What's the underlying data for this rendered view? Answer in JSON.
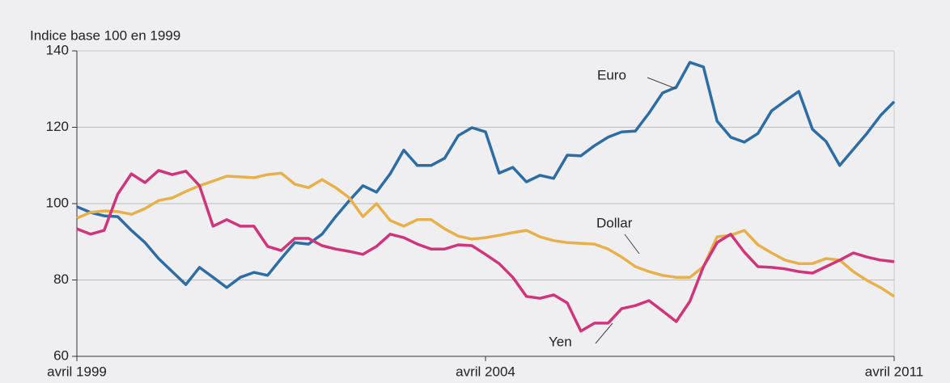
{
  "chart_data": {
    "type": "line",
    "y_label": "Indice base 100 en 1999",
    "categories": [
      "avril 1999",
      null,
      null,
      null,
      null,
      null,
      null,
      null,
      null,
      null,
      null,
      null,
      null,
      null,
      null,
      null,
      null,
      null,
      null,
      null,
      null,
      null,
      null,
      null,
      null,
      null,
      null,
      null,
      null,
      null,
      "avril 2004",
      null,
      null,
      null,
      null,
      null,
      null,
      null,
      null,
      null,
      null,
      null,
      null,
      null,
      null,
      null,
      null,
      null,
      null,
      null,
      null,
      null,
      null,
      null,
      null,
      null,
      null,
      null,
      null,
      null,
      "avril 2011"
    ],
    "series": [
      {
        "name": "Euro",
        "color": "#2e6da4",
        "values": [
          99.2,
          97.7,
          96.8,
          96.6,
          93.0,
          89.8,
          85.6,
          82.2,
          78.8,
          83.3,
          80.7,
          78.0,
          80.7,
          82.0,
          81.2,
          85.6,
          89.8,
          89.4,
          92.0,
          96.6,
          100.8,
          104.7,
          103.0,
          107.8,
          114.0,
          110.0,
          110.0,
          111.9,
          117.8,
          119.9,
          118.8,
          108.0,
          109.5,
          105.7,
          107.4,
          106.6,
          112.7,
          112.5,
          115.2,
          117.4,
          118.8,
          119.0,
          123.7,
          129.0,
          130.5,
          137.0,
          135.8,
          121.6,
          117.4,
          116.1,
          118.4,
          124.3,
          126.9,
          129.4,
          119.5,
          116.3,
          110.0,
          114.2,
          118.4,
          123.1,
          126.7
        ]
      },
      {
        "name": "Dollar",
        "color": "#e8b04a",
        "values": [
          96.2,
          97.7,
          98.1,
          97.9,
          97.2,
          98.7,
          100.8,
          101.5,
          103.2,
          104.7,
          105.9,
          107.2,
          107.0,
          106.8,
          107.6,
          108.0,
          105.1,
          104.2,
          106.3,
          104.2,
          101.5,
          96.6,
          100.0,
          95.6,
          94.1,
          95.8,
          95.8,
          93.4,
          91.5,
          90.7,
          91.1,
          91.7,
          92.4,
          93.0,
          91.3,
          90.3,
          89.8,
          89.6,
          89.4,
          88.1,
          86.0,
          83.5,
          82.2,
          81.2,
          80.7,
          80.7,
          83.5,
          91.3,
          91.7,
          93.0,
          89.2,
          87.1,
          85.2,
          84.3,
          84.3,
          85.6,
          85.2,
          82.2,
          79.9,
          78.0,
          75.7
        ]
      },
      {
        "name": "Yen",
        "color": "#d0357a",
        "values": [
          93.4,
          92.0,
          93.0,
          102.5,
          107.8,
          105.5,
          108.7,
          107.6,
          108.5,
          104.7,
          94.1,
          95.8,
          94.1,
          94.1,
          88.8,
          87.7,
          90.9,
          90.9,
          89.0,
          88.1,
          87.5,
          86.7,
          88.8,
          92.0,
          91.1,
          89.4,
          88.1,
          88.1,
          89.2,
          89.0,
          86.7,
          84.3,
          80.7,
          75.7,
          75.2,
          76.1,
          74.0,
          66.6,
          68.7,
          68.7,
          72.5,
          73.3,
          74.6,
          71.9,
          69.1,
          74.4,
          83.5,
          89.8,
          92.0,
          87.3,
          83.5,
          83.3,
          82.9,
          82.2,
          81.8,
          83.5,
          85.2,
          87.1,
          86.0,
          85.2,
          84.8
        ]
      }
    ],
    "ylim": [
      60,
      140
    ],
    "yticks": [
      60,
      80,
      100,
      120,
      140
    ],
    "grid": true
  }
}
